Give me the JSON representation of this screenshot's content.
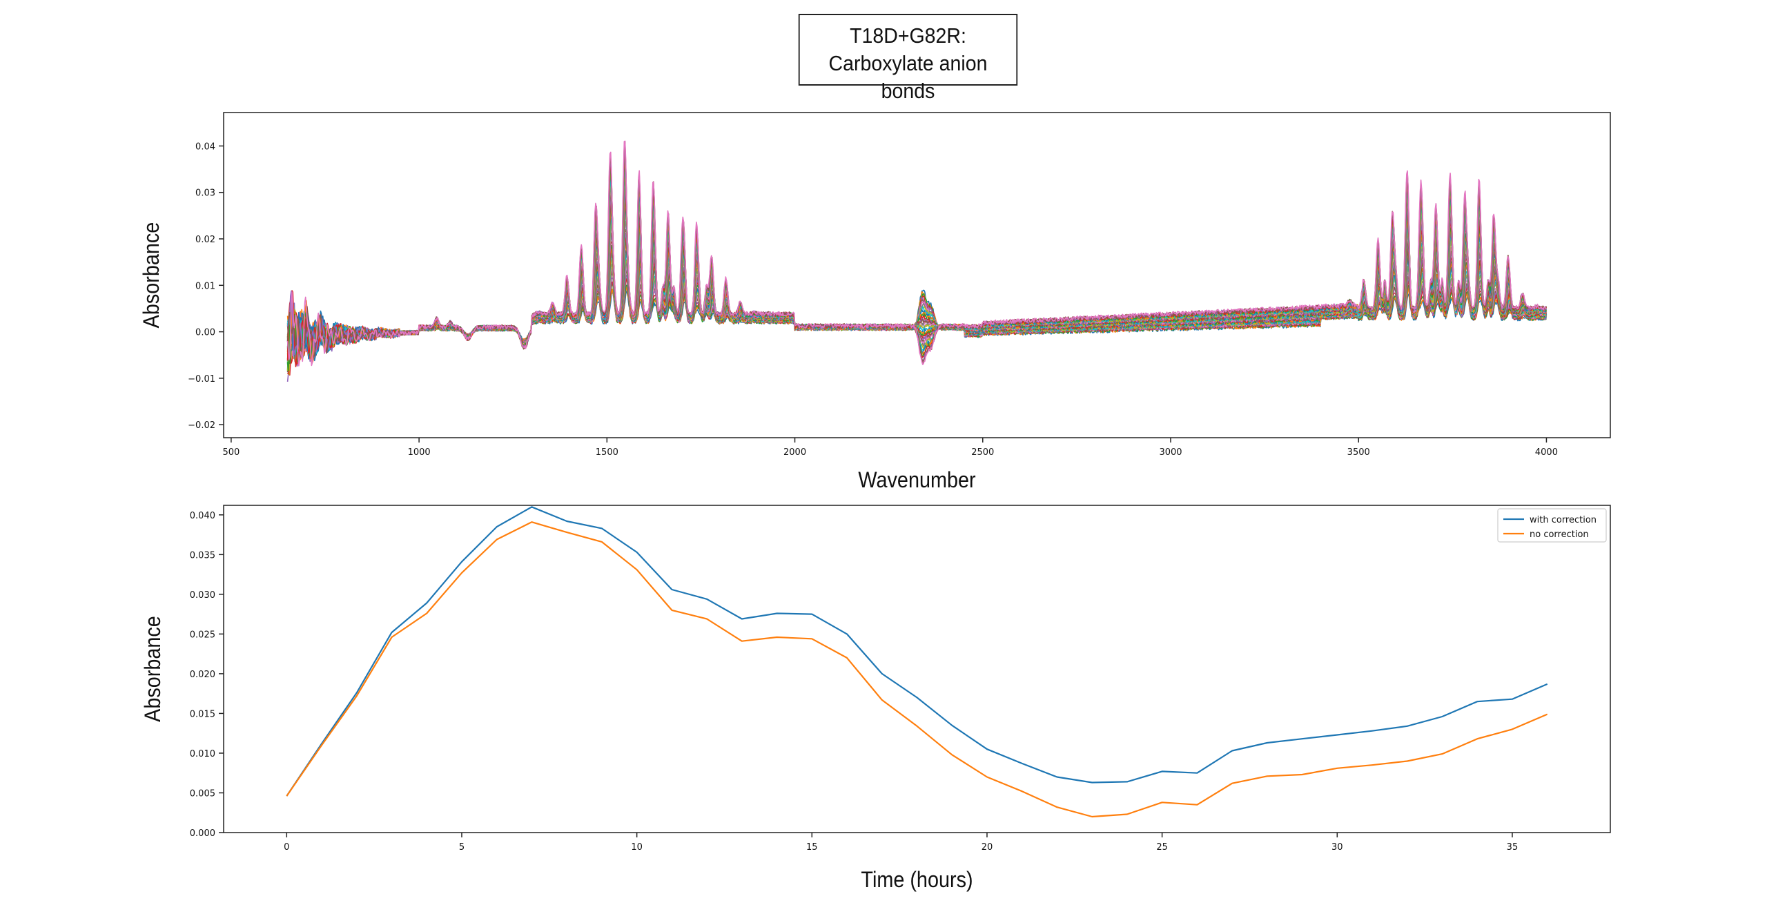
{
  "title_line1": "T18D+G82R:",
  "title_line2": "Carboxylate anion bonds",
  "chart_data": [
    {
      "type": "line",
      "xlabel": "Wavenumber",
      "ylabel": "Absorbance",
      "xlim": [
        480,
        4170
      ],
      "ylim": [
        -0.0228,
        0.0472
      ],
      "xticks": [
        500,
        1000,
        1500,
        2000,
        2500,
        3000,
        3500,
        4000
      ],
      "yticks": [
        -0.02,
        -0.01,
        0.0,
        0.01,
        0.02,
        0.03,
        0.04
      ],
      "ytick_labels": [
        "−0.02",
        "−0.01",
        "0.00",
        "0.01",
        "0.02",
        "0.03",
        "0.04"
      ],
      "x_range_of_series": [
        650,
        4000
      ],
      "series_count": 37,
      "series_colors": [
        "#1f77b4",
        "#ff7f0e",
        "#2ca02c",
        "#d62728",
        "#9467bd",
        "#8c564b",
        "#e377c2",
        "#7f7f7f",
        "#bcbd22",
        "#17becf"
      ],
      "grid": false,
      "legend": "none"
    },
    {
      "type": "line",
      "xlabel": "Time (hours)",
      "ylabel": "Absorbance",
      "xlim": [
        -1.8,
        37.8
      ],
      "ylim": [
        0.0,
        0.0412
      ],
      "xticks": [
        0,
        5,
        10,
        15,
        20,
        25,
        30,
        35
      ],
      "yticks": [
        0.0,
        0.005,
        0.01,
        0.015,
        0.02,
        0.025,
        0.03,
        0.035,
        0.04
      ],
      "ytick_labels": [
        "0.000",
        "0.005",
        "0.010",
        "0.015",
        "0.020",
        "0.025",
        "0.030",
        "0.035",
        "0.040"
      ],
      "x": [
        0,
        1,
        2,
        3,
        4,
        5,
        6,
        7,
        8,
        9,
        10,
        11,
        12,
        13,
        14,
        15,
        16,
        17,
        18,
        19,
        20,
        21,
        22,
        23,
        24,
        25,
        26,
        27,
        28,
        29,
        30,
        31,
        32,
        33,
        34,
        35,
        36
      ],
      "series": [
        {
          "name": "with correction",
          "color": "#1f77b4",
          "values": [
            0.0046,
            0.0112,
            0.0176,
            0.0252,
            0.0289,
            0.0341,
            0.0385,
            0.041,
            0.0392,
            0.0383,
            0.0353,
            0.0306,
            0.0294,
            0.0269,
            0.0276,
            0.0275,
            0.025,
            0.02,
            0.017,
            0.0135,
            0.0105,
            0.0087,
            0.007,
            0.0063,
            0.0064,
            0.0077,
            0.0075,
            0.0103,
            0.0113,
            0.0118,
            0.0123,
            0.0128,
            0.0134,
            0.0146,
            0.0165,
            0.0168,
            0.0187
          ]
        },
        {
          "name": "no correction",
          "color": "#ff7f0e",
          "values": [
            0.0046,
            0.011,
            0.0172,
            0.0246,
            0.0276,
            0.0327,
            0.0369,
            0.0391,
            0.0378,
            0.0366,
            0.0331,
            0.028,
            0.0269,
            0.0241,
            0.0246,
            0.0244,
            0.022,
            0.0167,
            0.0134,
            0.0098,
            0.007,
            0.0052,
            0.0032,
            0.002,
            0.0023,
            0.0038,
            0.0035,
            0.0062,
            0.0071,
            0.0073,
            0.0081,
            0.0085,
            0.009,
            0.0099,
            0.0118,
            0.013,
            0.0149
          ]
        }
      ],
      "grid": false,
      "legend": "top-right"
    }
  ]
}
